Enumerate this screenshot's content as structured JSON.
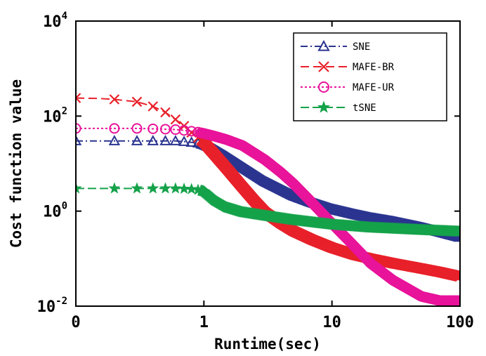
{
  "chart_data": {
    "type": "line",
    "title": "",
    "xlabel": "Runtime(sec)",
    "ylabel": "Cost function value",
    "xscale": "log",
    "yscale": "log",
    "xlim": [
      0.1,
      100
    ],
    "ylim": [
      0.01,
      10000
    ],
    "x_ticks": [
      {
        "value": 0.1,
        "label": "0"
      },
      {
        "value": 1,
        "label": "1"
      },
      {
        "value": 10,
        "label": "10"
      },
      {
        "value": 100,
        "label": "100"
      }
    ],
    "y_ticks": [
      {
        "value": 0.01,
        "base": "10",
        "exp": "-2"
      },
      {
        "value": 1,
        "base": "10",
        "exp": "0"
      },
      {
        "value": 100,
        "base": "10",
        "exp": "2"
      },
      {
        "value": 10000,
        "base": "10",
        "exp": "4"
      }
    ],
    "legend_position": "top-right",
    "series": [
      {
        "name": "SNE",
        "color": "#2b3590",
        "marker": "triangle",
        "x": [
          0.1,
          0.15,
          0.2,
          0.3,
          0.4,
          0.5,
          0.6,
          0.7,
          0.8,
          0.9,
          1.0,
          1.2,
          1.5,
          2,
          3,
          5,
          7,
          10,
          15,
          20,
          30,
          50,
          70,
          100
        ],
        "y": [
          30,
          30,
          30,
          30,
          30,
          30,
          30,
          29,
          28,
          27,
          25,
          20,
          14,
          8.5,
          4.2,
          2.1,
          1.5,
          1.1,
          0.85,
          0.72,
          0.6,
          0.45,
          0.36,
          0.28
        ]
      },
      {
        "name": "MAFE-BR",
        "color": "#e8212a",
        "marker": "x",
        "x": [
          0.1,
          0.15,
          0.2,
          0.3,
          0.4,
          0.5,
          0.6,
          0.7,
          0.8,
          0.9,
          1.0,
          1.2,
          1.5,
          2,
          2.5,
          3,
          4,
          5,
          7,
          10,
          15,
          20,
          30,
          50,
          70,
          100
        ],
        "y": [
          240,
          235,
          225,
          200,
          160,
          120,
          85,
          62,
          45,
          35,
          28,
          16,
          8,
          3.2,
          1.6,
          0.95,
          0.55,
          0.38,
          0.25,
          0.17,
          0.12,
          0.1,
          0.08,
          0.062,
          0.052,
          0.042
        ]
      },
      {
        "name": "MAFE-UR",
        "color": "#e8149a",
        "marker": "circle",
        "x": [
          0.1,
          0.15,
          0.2,
          0.3,
          0.4,
          0.5,
          0.6,
          0.7,
          0.8,
          0.9,
          1.0,
          1.2,
          1.5,
          2,
          3,
          4,
          5,
          7,
          10,
          15,
          20,
          30,
          50,
          70,
          100
        ],
        "y": [
          55,
          55,
          55,
          55,
          54,
          53,
          52,
          50,
          48,
          46,
          43,
          38,
          32,
          24,
          12,
          6.5,
          3.8,
          1.5,
          0.55,
          0.18,
          0.08,
          0.035,
          0.016,
          0.013,
          0.013
        ]
      },
      {
        "name": "tSNE",
        "color": "#15a24a",
        "marker": "star",
        "x": [
          0.1,
          0.15,
          0.2,
          0.3,
          0.4,
          0.5,
          0.6,
          0.7,
          0.8,
          0.9,
          1.0,
          1.2,
          1.5,
          2,
          3,
          5,
          10,
          20,
          50,
          100
        ],
        "y": [
          3,
          3,
          3,
          3,
          3,
          3,
          3,
          2.95,
          2.9,
          2.8,
          2.6,
          1.7,
          1.2,
          0.95,
          0.8,
          0.65,
          0.52,
          0.45,
          0.4,
          0.37
        ]
      }
    ]
  }
}
